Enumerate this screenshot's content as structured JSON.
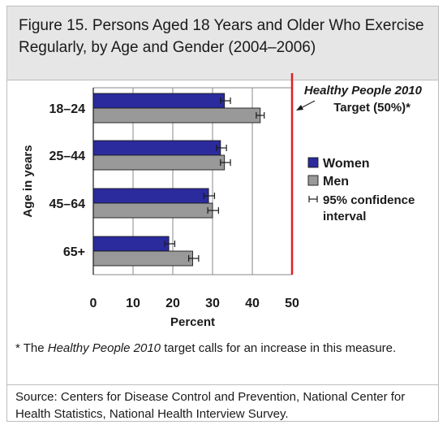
{
  "figure": {
    "title": "Figure 15. Persons Aged 18 Years and Older Who Exercise Regularly, by Age and Gender (2004–2006)"
  },
  "chart_data": {
    "type": "bar",
    "orientation": "horizontal",
    "categories": [
      "18–24",
      "25–44",
      "45–64",
      "65+"
    ],
    "series": [
      {
        "name": "Women",
        "color": "#2b2b9e",
        "values": [
          33,
          32,
          29,
          19
        ],
        "ci": [
          [
            32,
            34.5
          ],
          [
            31,
            33.5
          ],
          [
            27.8,
            30.5
          ],
          [
            18,
            20.5
          ]
        ]
      },
      {
        "name": "Men",
        "color": "#999999",
        "values": [
          42,
          33,
          30,
          25
        ],
        "ci": [
          [
            41,
            43
          ],
          [
            32,
            34.5
          ],
          [
            28.8,
            31.5
          ],
          [
            24,
            26.5
          ]
        ]
      }
    ],
    "xlabel": "Percent",
    "ylabel": "Age in years",
    "xlim": [
      0,
      50
    ],
    "xticks": [
      0,
      10,
      20,
      30,
      40,
      50
    ],
    "grid": true,
    "legend_position": "right",
    "legend_ci_label": "95% confidence interval",
    "target": {
      "value": 50,
      "color": "#dd1f26",
      "label_line1": "Healthy People 2010",
      "label_line2": "Target  (50%)*"
    }
  },
  "footnote": {
    "marker": "* The ",
    "emphasis": "Healthy People 2010",
    "rest": " target calls for an increase in this measure."
  },
  "source": "Source: Centers for Disease Control and Prevention, National Center for Health Statistics, National Health Interview Survey."
}
